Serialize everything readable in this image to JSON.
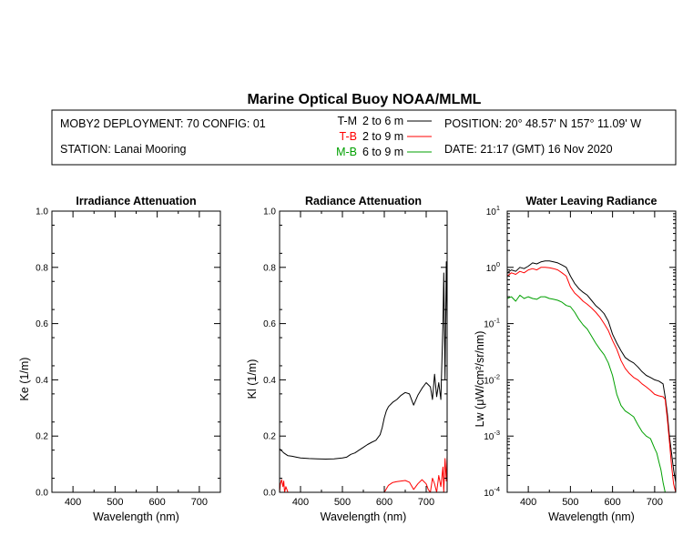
{
  "title": "Marine Optical Buoy NOAA/MLML",
  "info": {
    "deployment": "MOBY2 DEPLOYMENT: 70 CONFIG: 01",
    "station": "STATION: Lanai Mooring",
    "position": "POSITION: 20° 48.57' N   157° 11.09' W",
    "date": "DATE: 21:17 (GMT) 16 Nov 2020",
    "legend": [
      {
        "name": "T-M",
        "range": "2 to 6  m",
        "color": "#000000"
      },
      {
        "name": "T-B",
        "range": "2 to 9  m",
        "color": "#ff0000"
      },
      {
        "name": "M-B",
        "range": "6 to 9  m",
        "color": "#00a000"
      }
    ]
  },
  "chart_data": [
    {
      "type": "line",
      "title": "Irradiance Attenuation",
      "xlabel": "Wavelength (nm)",
      "ylabel": "Ke  (1/m)",
      "xlim": [
        350,
        750
      ],
      "ylim": [
        0,
        1
      ],
      "xticks": [
        "400",
        "500",
        "600",
        "700"
      ],
      "yticks": [
        "0.0",
        "0.2",
        "0.4",
        "0.6",
        "0.8",
        "1.0"
      ],
      "series": []
    },
    {
      "type": "line",
      "title": "Radiance Attenuation",
      "xlabel": "Wavelength (nm)",
      "ylabel": "Kl  (1/m)",
      "xlim": [
        350,
        750
      ],
      "ylim": [
        0,
        1
      ],
      "xticks": [
        "400",
        "500",
        "600",
        "700"
      ],
      "yticks": [
        "0.0",
        "0.2",
        "0.4",
        "0.6",
        "0.8",
        "1.0"
      ],
      "series": [
        {
          "name": "T-M",
          "color": "#000000",
          "x": [
            350,
            360,
            370,
            380,
            390,
            400,
            420,
            440,
            460,
            480,
            500,
            510,
            520,
            530,
            540,
            550,
            560,
            570,
            580,
            590,
            595,
            600,
            605,
            610,
            620,
            630,
            640,
            650,
            660,
            670,
            680,
            690,
            700,
            710,
            715,
            720,
            725,
            730,
            735,
            740,
            742,
            745,
            748,
            750
          ],
          "y": [
            0.155,
            0.14,
            0.13,
            0.128,
            0.125,
            0.122,
            0.12,
            0.119,
            0.118,
            0.119,
            0.122,
            0.125,
            0.135,
            0.14,
            0.15,
            0.16,
            0.17,
            0.178,
            0.185,
            0.205,
            0.23,
            0.265,
            0.29,
            0.305,
            0.32,
            0.33,
            0.345,
            0.355,
            0.35,
            0.31,
            0.345,
            0.37,
            0.39,
            0.375,
            0.33,
            0.42,
            0.34,
            0.39,
            0.33,
            0.6,
            0.78,
            0.4,
            0.82,
            0.6
          ]
        },
        {
          "name": "T-B",
          "color": "#ff0000",
          "x": [
            350,
            352,
            355,
            358,
            360,
            362,
            365,
            370,
            600,
            610,
            620,
            630,
            640,
            650,
            660,
            670,
            680,
            690,
            700,
            705,
            710,
            715,
            720,
            725,
            730,
            735,
            740,
            742,
            745,
            748,
            750
          ],
          "y": [
            0.0,
            0.03,
            0.045,
            0.02,
            0.04,
            0.0,
            0.02,
            0.0,
            0.0,
            0.025,
            0.035,
            0.038,
            0.04,
            0.042,
            0.036,
            0.01,
            0.03,
            0.045,
            0.03,
            0.01,
            0.0,
            0.05,
            0.03,
            0.0,
            0.06,
            0.02,
            0.09,
            0.0,
            0.12,
            0.04,
            0.13
          ]
        }
      ]
    },
    {
      "type": "line",
      "title": "Water Leaving Radiance",
      "xlabel": "Wavelength (nm)",
      "ylabel": "Lw  (μW/cm²/sr/nm)",
      "xlim": [
        350,
        750
      ],
      "ylim": [
        0.0001,
        10
      ],
      "yscale": "log",
      "xticks": [
        "400",
        "500",
        "600",
        "700"
      ],
      "yticks_exp": [
        "1",
        "0",
        "-1",
        "-2",
        "-3",
        "-4"
      ],
      "series": [
        {
          "name": "T-M",
          "color": "#000000",
          "x": [
            350,
            360,
            370,
            380,
            390,
            400,
            410,
            420,
            430,
            440,
            450,
            460,
            470,
            480,
            490,
            500,
            510,
            520,
            530,
            540,
            550,
            560,
            570,
            580,
            590,
            600,
            610,
            620,
            630,
            640,
            650,
            660,
            670,
            680,
            690,
            700,
            710,
            720,
            725,
            730,
            735,
            740,
            745,
            750
          ],
          "y": [
            0.8,
            0.9,
            0.85,
            1.0,
            0.95,
            1.05,
            1.2,
            1.15,
            1.25,
            1.3,
            1.3,
            1.25,
            1.2,
            1.1,
            1.0,
            0.7,
            0.52,
            0.42,
            0.36,
            0.32,
            0.26,
            0.21,
            0.18,
            0.15,
            0.11,
            0.065,
            0.045,
            0.033,
            0.025,
            0.022,
            0.02,
            0.017,
            0.014,
            0.012,
            0.011,
            0.01,
            0.0095,
            0.0085,
            0.005,
            0.0025,
            0.001,
            0.0005,
            0.00025,
            0.00015
          ]
        },
        {
          "name": "T-B",
          "color": "#ff0000",
          "x": [
            350,
            360,
            370,
            380,
            390,
            400,
            410,
            420,
            430,
            440,
            450,
            460,
            470,
            480,
            490,
            500,
            510,
            520,
            530,
            540,
            550,
            560,
            570,
            580,
            590,
            600,
            610,
            620,
            630,
            640,
            650,
            660,
            670,
            680,
            690,
            700,
            710,
            720,
            725,
            730,
            735,
            740,
            745,
            750
          ],
          "y": [
            0.7,
            0.8,
            0.75,
            0.85,
            0.8,
            0.9,
            0.95,
            0.9,
            1.0,
            1.0,
            0.98,
            0.95,
            0.9,
            0.8,
            0.7,
            0.45,
            0.35,
            0.3,
            0.25,
            0.22,
            0.19,
            0.16,
            0.13,
            0.1,
            0.075,
            0.05,
            0.035,
            0.022,
            0.016,
            0.013,
            0.011,
            0.01,
            0.0085,
            0.0075,
            0.0065,
            0.0055,
            0.0052,
            0.005,
            0.0045,
            0.002,
            0.0008,
            0.0003,
            0.00014,
            0.0001
          ]
        },
        {
          "name": "M-B",
          "color": "#00a000",
          "x": [
            350,
            360,
            370,
            380,
            390,
            400,
            410,
            420,
            430,
            440,
            450,
            460,
            470,
            480,
            490,
            500,
            510,
            520,
            530,
            540,
            550,
            560,
            570,
            580,
            590,
            600,
            610,
            620,
            630,
            640,
            650,
            660,
            670,
            680,
            690,
            700,
            705,
            710,
            715,
            720,
            725
          ],
          "y": [
            0.28,
            0.3,
            0.25,
            0.32,
            0.28,
            0.3,
            0.28,
            0.27,
            0.3,
            0.3,
            0.28,
            0.27,
            0.26,
            0.24,
            0.21,
            0.2,
            0.16,
            0.12,
            0.095,
            0.08,
            0.06,
            0.045,
            0.035,
            0.028,
            0.02,
            0.012,
            0.0055,
            0.0035,
            0.0028,
            0.0025,
            0.0022,
            0.0016,
            0.0012,
            0.001,
            0.0009,
            0.0006,
            0.0005,
            0.00035,
            0.00025,
            0.00015,
            0.0001
          ]
        }
      ]
    }
  ]
}
